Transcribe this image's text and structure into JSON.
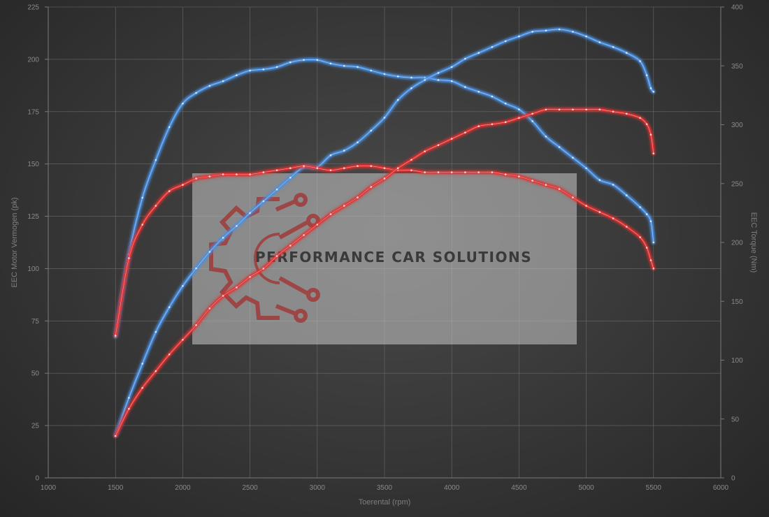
{
  "chart_data": {
    "type": "line",
    "xlabel": "Toerental (rpm)",
    "ylabel_left": "EEC Motor Vermogen (pk)",
    "ylabel_right": "EEC Torque (Nm)",
    "xlim": [
      1000,
      6000
    ],
    "ylim_left": [
      0,
      225
    ],
    "ylim_right": [
      0,
      400
    ],
    "x_ticks": [
      "1000",
      "1500",
      "2000",
      "2500",
      "3000",
      "3500",
      "4000",
      "4500",
      "5000",
      "5500",
      "6000"
    ],
    "y_ticks_left": [
      "0",
      "25",
      "50",
      "75",
      "100",
      "125",
      "150",
      "175",
      "200",
      "225"
    ],
    "y_ticks_right": [
      "0",
      "50",
      "100",
      "150",
      "200",
      "250",
      "300",
      "350",
      "400"
    ],
    "grid": true,
    "colors": {
      "tuned": "#4a8fe0",
      "stock": "#e03030"
    },
    "series": [
      {
        "axis": "right",
        "color_key": "tuned",
        "x": [
          1500,
          1600,
          1700,
          1800,
          1900,
          2000,
          2100,
          2200,
          2300,
          2400,
          2500,
          2600,
          2700,
          2800,
          2900,
          3000,
          3100,
          3200,
          3300,
          3400,
          3500,
          3600,
          3700,
          3800,
          3900,
          4000,
          4100,
          4200,
          4300,
          4400,
          4500,
          4600,
          4700,
          4800,
          4900,
          5000,
          5100,
          5200,
          5300,
          5400,
          5450,
          5480,
          5500
        ],
        "values": [
          120,
          190,
          238,
          270,
          298,
          318,
          327,
          333,
          337,
          342,
          346,
          347,
          349,
          353,
          355,
          355,
          352,
          350,
          349,
          346,
          343,
          341,
          340,
          340,
          338,
          337,
          332,
          328,
          324,
          318,
          313,
          303,
          290,
          281,
          272,
          263,
          253,
          249,
          240,
          230,
          224,
          218,
          200
        ]
      },
      {
        "axis": "right",
        "color_key": "tuned",
        "x": [
          1500,
          1600,
          1700,
          1800,
          1900,
          2000,
          2100,
          2200,
          2300,
          2400,
          2500,
          2600,
          2700,
          2800,
          2900,
          3000,
          3100,
          3200,
          3300,
          3400,
          3500,
          3600,
          3700,
          3800,
          3900,
          4000,
          4100,
          4200,
          4300,
          4400,
          4500,
          4600,
          4700,
          4800,
          4900,
          5000,
          5100,
          5200,
          5300,
          5400,
          5450,
          5480,
          5500
        ],
        "values": [
          36,
          68,
          97,
          124,
          145,
          163,
          178,
          192,
          204,
          214,
          225,
          235,
          245,
          255,
          264,
          264,
          274,
          278,
          285,
          295,
          306,
          321,
          331,
          338,
          344,
          349,
          356,
          361,
          366,
          371,
          375,
          379,
          380,
          381,
          379,
          375,
          370,
          366,
          361,
          354,
          342,
          331,
          328
        ]
      },
      {
        "axis": "left",
        "color_key": "stock",
        "x": [
          1500,
          1600,
          1700,
          1800,
          1900,
          2000,
          2100,
          2200,
          2300,
          2400,
          2500,
          2600,
          2700,
          2800,
          2900,
          3000,
          3100,
          3200,
          3300,
          3400,
          3500,
          3600,
          3700,
          3800,
          3900,
          4000,
          4100,
          4200,
          4300,
          4400,
          4500,
          4600,
          4700,
          4800,
          4900,
          5000,
          5100,
          5200,
          5300,
          5400,
          5450,
          5480,
          5500
        ],
        "values": [
          68,
          105,
          121,
          130,
          137,
          140,
          143,
          144,
          145,
          145,
          145,
          146,
          147,
          148,
          149,
          148,
          147,
          148,
          149,
          149,
          148,
          147,
          147,
          146,
          146,
          146,
          146,
          146,
          146,
          145,
          144,
          142,
          140,
          138,
          134,
          130,
          127,
          124,
          120,
          115,
          110,
          104,
          100
        ]
      },
      {
        "axis": "left",
        "color_key": "stock",
        "x": [
          1500,
          1600,
          1700,
          1800,
          1900,
          2000,
          2100,
          2200,
          2300,
          2400,
          2500,
          2600,
          2700,
          2800,
          2900,
          3000,
          3100,
          3200,
          3300,
          3400,
          3500,
          3600,
          3700,
          3800,
          3900,
          4000,
          4100,
          4200,
          4300,
          4400,
          4500,
          4600,
          4700,
          4800,
          4900,
          5000,
          5100,
          5200,
          5300,
          5400,
          5450,
          5480,
          5500
        ],
        "values": [
          20,
          33,
          43,
          51,
          59,
          66,
          73,
          81,
          87,
          91,
          96,
          100,
          106,
          111,
          116,
          121,
          126,
          130,
          134,
          139,
          143,
          148,
          152,
          156,
          159,
          162,
          165,
          168,
          169,
          170,
          172,
          174,
          176,
          176,
          176,
          176,
          176,
          175,
          174,
          172,
          169,
          164,
          155
        ]
      }
    ]
  },
  "watermark": {
    "text": "PERFORMANCE CAR SOLUTIONS"
  }
}
